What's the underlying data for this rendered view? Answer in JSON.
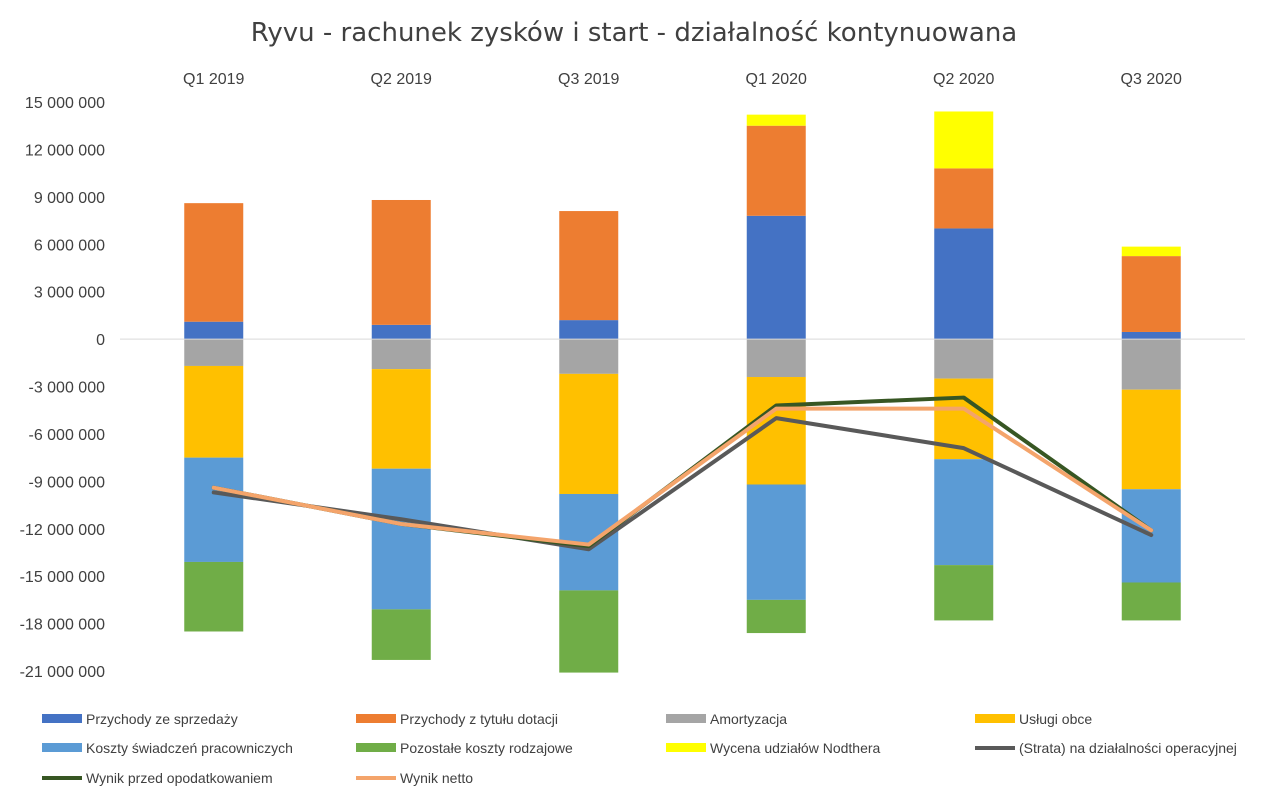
{
  "chart_data": {
    "type": "bar",
    "title": "Ryvu - rachunek zysków i start - działalność kontynuowana",
    "categories": [
      "Q1 2019",
      "Q2 2019",
      "Q3 2019",
      "Q1 2020",
      "Q2 2020",
      "Q3 2020"
    ],
    "ylim": [
      -21000000,
      15000000
    ],
    "yticks": [
      15000000,
      12000000,
      9000000,
      6000000,
      3000000,
      0,
      -3000000,
      -6000000,
      -9000000,
      -12000000,
      -15000000,
      -18000000,
      -21000000
    ],
    "ytick_labels": [
      "15 000 000",
      "12 000 000",
      "9 000 000",
      "6 000 000",
      "3 000 000",
      "0",
      "-3 000 000",
      "-6 000 000",
      "-9 000 000",
      "-12 000 000",
      "-15 000 000",
      "-18 000 000",
      "-21 000 000"
    ],
    "stacked": true,
    "category_axis_position": "top",
    "legend_position": "bottom",
    "grid": false,
    "bar_series": [
      {
        "name": "Przychody ze sprzedaży",
        "color": "#4472C4",
        "values": [
          1100000,
          900000,
          1200000,
          7800000,
          7000000,
          450000
        ]
      },
      {
        "name": "Przychody z tytułu dotacji",
        "color": "#ED7D31",
        "values": [
          7500000,
          7900000,
          6900000,
          5700000,
          3800000,
          4800000
        ]
      },
      {
        "name": "Amortyzacja",
        "color": "#A5A5A5",
        "values": [
          -1700000,
          -1900000,
          -2200000,
          -2400000,
          -2500000,
          -3200000
        ]
      },
      {
        "name": "Usługi obce",
        "color": "#FFC000",
        "values": [
          -5800000,
          -6300000,
          -7600000,
          -6800000,
          -5100000,
          -6300000
        ]
      },
      {
        "name": "Koszty świadczeń pracowniczych",
        "color": "#5B9BD5",
        "values": [
          -6600000,
          -8900000,
          -6100000,
          -7300000,
          -6700000,
          -5900000
        ]
      },
      {
        "name": "Pozostałe koszty rodzajowe",
        "color": "#70AD47",
        "values": [
          -4400000,
          -3200000,
          -5200000,
          -2100000,
          -3500000,
          -2400000
        ]
      },
      {
        "name": "Wycena udziałów Nodthera",
        "color": "#FFFF00",
        "values": [
          0,
          0,
          0,
          700000,
          3600000,
          600000
        ]
      }
    ],
    "line_series": [
      {
        "name": "(Strata) na działalności operacyjnej",
        "color": "#595959",
        "values": [
          -9700000,
          -11400000,
          -13300000,
          -5000000,
          -6900000,
          -12400000
        ]
      },
      {
        "name": "Wynik przed opodatkowaniem",
        "color": "#375623",
        "values": [
          -9400000,
          -11700000,
          -13100000,
          -4200000,
          -3700000,
          -12100000
        ]
      },
      {
        "name": "Wynik netto",
        "color": "#F4A46B",
        "values": [
          -9400000,
          -11700000,
          -13000000,
          -4400000,
          -4400000,
          -12100000
        ]
      }
    ]
  }
}
